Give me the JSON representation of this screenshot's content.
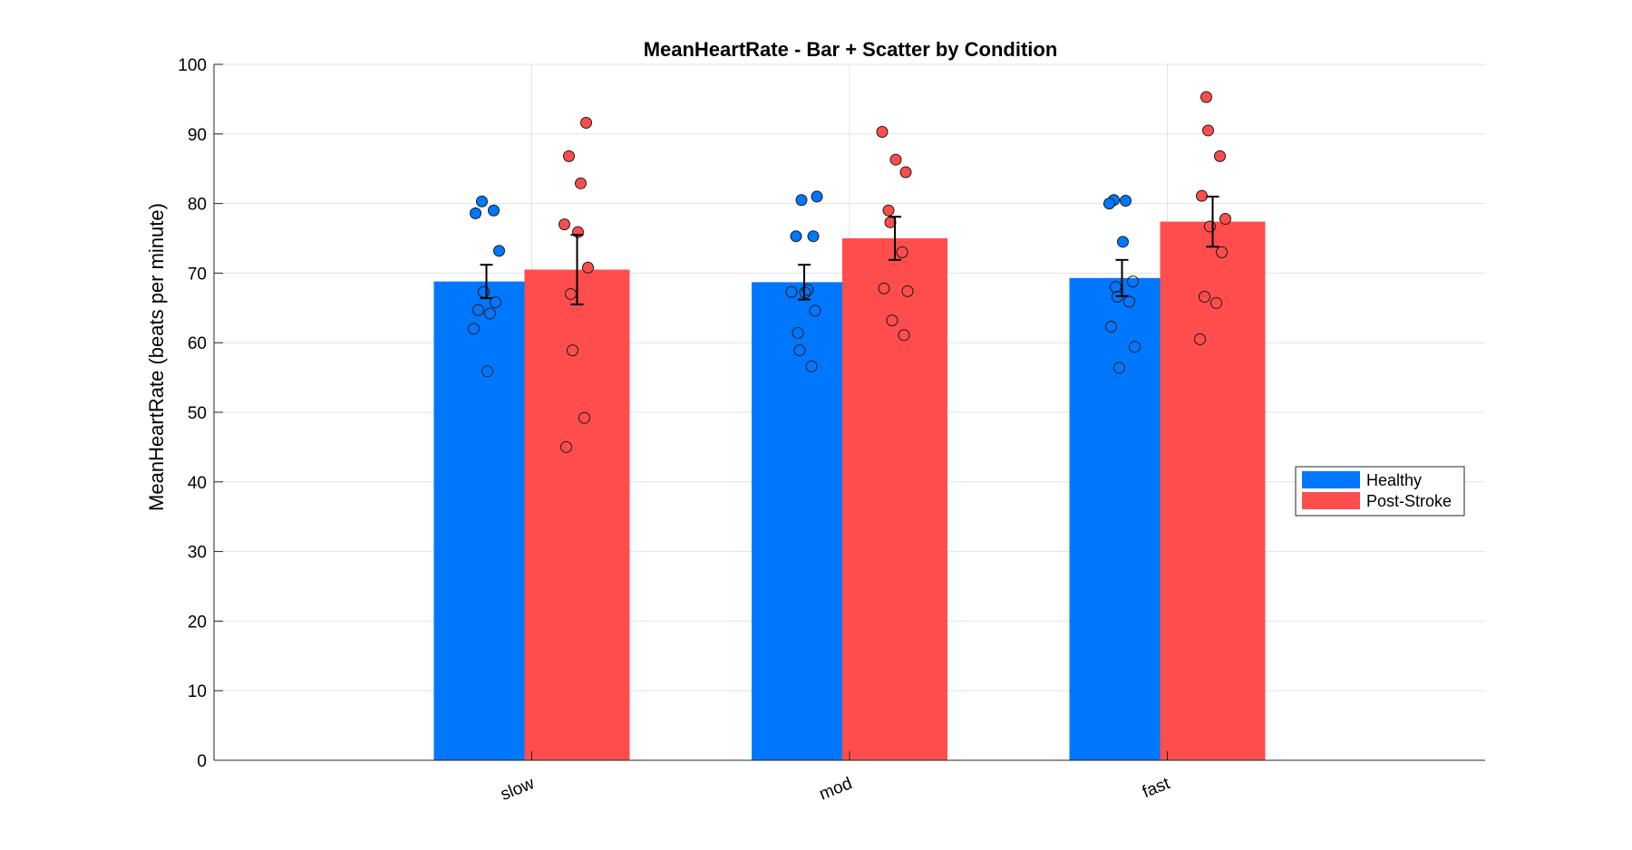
{
  "chart_data": {
    "type": "bar",
    "title": "MeanHeartRate - Bar + Scatter by Condition",
    "xlabel": "",
    "ylabel": "MeanHeartRate (beats per minute)",
    "categories": [
      "slow",
      "mod",
      "fast"
    ],
    "ylim": [
      0,
      100
    ],
    "yticks": [
      "0",
      "10",
      "20",
      "30",
      "40",
      "50",
      "60",
      "70",
      "80",
      "90",
      "100"
    ],
    "grid": true,
    "legend": {
      "position": "right",
      "entries": [
        "Healthy",
        "Post-Stroke"
      ]
    },
    "series": [
      {
        "name": "Healthy",
        "color": "#0077ff",
        "values": [
          68.8,
          68.7,
          69.3
        ],
        "error": [
          2.4,
          2.5,
          2.6
        ],
        "points": [
          [
            80.3,
            79.0,
            78.6,
            73.2,
            67.3,
            65.8,
            64.7,
            64.2,
            62.0,
            55.9
          ],
          [
            81.0,
            80.5,
            75.3,
            75.3,
            67.6,
            67.3,
            67.2,
            64.6,
            61.4,
            58.9,
            56.6
          ],
          [
            80.5,
            80.4,
            80.0,
            74.5,
            68.8,
            68.0,
            66.6,
            65.9,
            62.3,
            59.4,
            56.4
          ]
        ]
      },
      {
        "name": "Post-Stroke",
        "color": "#ff4d4d",
        "values": [
          70.5,
          75.0,
          77.4
        ],
        "error": [
          5.0,
          3.1,
          3.6
        ],
        "points": [
          [
            91.6,
            86.8,
            82.9,
            77.0,
            75.9,
            70.8,
            67.0,
            58.9,
            49.2,
            45.0
          ],
          [
            90.3,
            86.3,
            84.5,
            79.0,
            77.3,
            73.0,
            67.8,
            67.4,
            63.2,
            61.1
          ],
          [
            95.3,
            90.5,
            86.8,
            81.1,
            77.8,
            76.7,
            73.0,
            66.6,
            65.7,
            60.5
          ]
        ]
      }
    ]
  }
}
